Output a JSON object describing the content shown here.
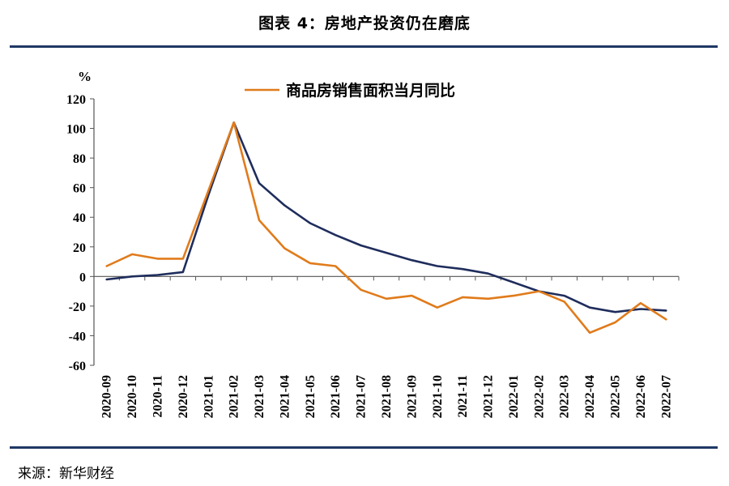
{
  "header": {
    "title": "图表 4：房地产投资仍在磨底"
  },
  "footer": {
    "source": "来源：新华财经"
  },
  "colors": {
    "series1": "#e07b1b",
    "series2": "#1f2d5c",
    "rule": "#1f3864"
  },
  "chart_data": {
    "type": "line",
    "title": "图表 4：房地产投资仍在磨底",
    "ylabel": "%",
    "xlabel": "",
    "ylim": [
      -60,
      120
    ],
    "yticks": [
      120,
      100,
      80,
      60,
      40,
      20,
      0,
      -20,
      -40,
      -60
    ],
    "categories": [
      "2020-09",
      "2020-10",
      "2020-11",
      "2020-12",
      "2021-01",
      "2021-02",
      "2021-03",
      "2021-04",
      "2021-05",
      "2021-06",
      "2021-07",
      "2021-08",
      "2021-09",
      "2021-10",
      "2021-11",
      "2021-12",
      "2022-01",
      "2022-02",
      "2022-03",
      "2022-04",
      "2022-05",
      "2022-06",
      "2022-07"
    ],
    "legend_position": "top",
    "series": [
      {
        "name": "商品房销售面积当月同比",
        "color": "#e07b1b",
        "in_legend": true,
        "values": [
          7,
          15,
          12,
          12,
          58,
          104,
          38,
          19,
          9,
          7,
          -9,
          -15,
          -13,
          -21,
          -14,
          -15,
          -13,
          -10,
          -17,
          -38,
          -31,
          -18,
          -29
        ]
      },
      {
        "name": "",
        "color": "#1f2d5c",
        "in_legend": false,
        "values": [
          -2,
          0,
          1,
          3,
          55,
          104,
          63,
          48,
          36,
          28,
          21,
          16,
          11,
          7,
          5,
          2,
          -4,
          -10,
          -13,
          -21,
          -24,
          -22,
          -23
        ]
      }
    ]
  }
}
